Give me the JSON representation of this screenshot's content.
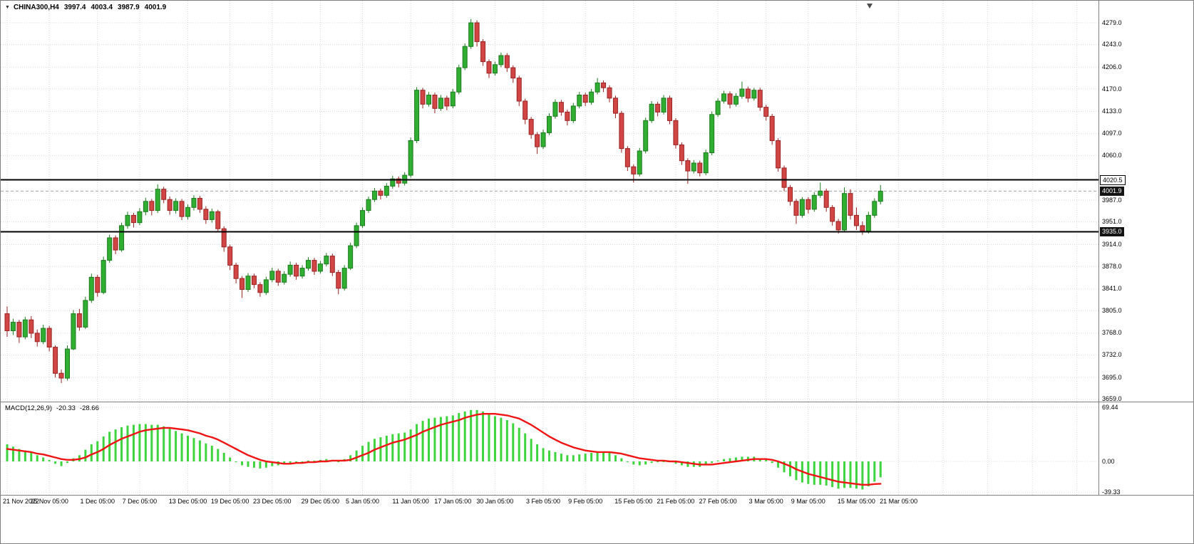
{
  "window": {
    "one_click_arrow": "▼",
    "symbol_label": "CHINA300,H4",
    "ohlc": {
      "open": "3997.4",
      "high": "4003.4",
      "low": "3987.9",
      "close": "4001.9"
    }
  },
  "colors": {
    "bull": "#2fae31",
    "bear": "#d24545",
    "macd_histogram": "#3ed43e",
    "macd_signal": "#f01414",
    "line_objects": "#000000",
    "background": "#ffffff"
  },
  "chart_data": [
    {
      "type": "candlestick",
      "title": "CHINA300,H4",
      "timeframe": "H4",
      "grid": true,
      "ylim": [
        3655.4,
        4315.3
      ],
      "price_ticks": [
        "4279.0",
        "4243.0",
        "4206.0",
        "4170.0",
        "4133.0",
        "4097.0",
        "4060.0",
        "3987.0",
        "3951.0",
        "3914.0",
        "3878.0",
        "3841.0",
        "3805.0",
        "3768.0",
        "3732.0",
        "3695.0",
        "3659.0"
      ],
      "hlines": [
        {
          "price": 4020.5,
          "label": "4020.5",
          "style": "light"
        },
        {
          "price": 3935.0,
          "label": "3935.0",
          "style": "dark"
        }
      ],
      "bid": {
        "price": 4001.9,
        "label": "4001.9"
      },
      "x_labels": [
        {
          "text": "21 Nov 2022",
          "index": 0
        },
        {
          "text": "25 Nov 05:00",
          "index": 7
        },
        {
          "text": "1 Dec 05:00",
          "index": 15
        },
        {
          "text": "7 Dec 05:00",
          "index": 22
        },
        {
          "text": "13 Dec 05:00",
          "index": 30
        },
        {
          "text": "19 Dec 05:00",
          "index": 37
        },
        {
          "text": "23 Dec 05:00",
          "index": 44
        },
        {
          "text": "29 Dec 05:00",
          "index": 52
        },
        {
          "text": "5 Jan 05:00",
          "index": 59
        },
        {
          "text": "11 Jan 05:00",
          "index": 67
        },
        {
          "text": "17 Jan 05:00",
          "index": 74
        },
        {
          "text": "30 Jan 05:00",
          "index": 81
        },
        {
          "text": "3 Feb 05:00",
          "index": 89
        },
        {
          "text": "9 Feb 05:00",
          "index": 96
        },
        {
          "text": "15 Feb 05:00",
          "index": 104
        },
        {
          "text": "21 Feb 05:00",
          "index": 111
        },
        {
          "text": "27 Feb 05:00",
          "index": 118
        },
        {
          "text": "3 Mar 05:00",
          "index": 126
        },
        {
          "text": "9 Mar 05:00",
          "index": 133
        },
        {
          "text": "15 Mar 05:00",
          "index": 141
        },
        {
          "text": "21 Mar 05:00",
          "index": 148
        }
      ],
      "candles": [
        [
          3800,
          3812,
          3762,
          3772
        ],
        [
          3772,
          3792,
          3765,
          3786
        ],
        [
          3786,
          3790,
          3752,
          3762
        ],
        [
          3762,
          3795,
          3758,
          3790
        ],
        [
          3790,
          3796,
          3760,
          3768
        ],
        [
          3768,
          3774,
          3746,
          3754
        ],
        [
          3754,
          3782,
          3750,
          3776
        ],
        [
          3776,
          3780,
          3738,
          3745
        ],
        [
          3745,
          3748,
          3695,
          3702
        ],
        [
          3702,
          3708,
          3686,
          3694
        ],
        [
          3694,
          3748,
          3690,
          3742
        ],
        [
          3742,
          3806,
          3740,
          3800
        ],
        [
          3800,
          3808,
          3772,
          3778
        ],
        [
          3778,
          3828,
          3775,
          3822
        ],
        [
          3822,
          3866,
          3818,
          3860
        ],
        [
          3860,
          3864,
          3828,
          3835
        ],
        [
          3835,
          3894,
          3832,
          3888
        ],
        [
          3888,
          3930,
          3884,
          3925
        ],
        [
          3925,
          3929,
          3898,
          3905
        ],
        [
          3905,
          3950,
          3902,
          3945
        ],
        [
          3945,
          3968,
          3940,
          3962
        ],
        [
          3962,
          3966,
          3942,
          3950
        ],
        [
          3950,
          3974,
          3946,
          3968
        ],
        [
          3968,
          3991,
          3962,
          3985
        ],
        [
          3985,
          3989,
          3962,
          3970
        ],
        [
          3970,
          4013,
          3966,
          4005
        ],
        [
          4005,
          4009,
          3982,
          3988
        ],
        [
          3988,
          3993,
          3963,
          3970
        ],
        [
          3970,
          3990,
          3965,
          3985
        ],
        [
          3985,
          3989,
          3954,
          3960
        ],
        [
          3960,
          3980,
          3955,
          3975
        ],
        [
          3975,
          3995,
          3970,
          3990
        ],
        [
          3990,
          3994,
          3966,
          3972
        ],
        [
          3972,
          3977,
          3948,
          3955
        ],
        [
          3955,
          3973,
          3950,
          3968
        ],
        [
          3968,
          3971,
          3934,
          3940
        ],
        [
          3940,
          3944,
          3902,
          3910
        ],
        [
          3910,
          3914,
          3872,
          3880
        ],
        [
          3880,
          3884,
          3850,
          3858
        ],
        [
          3858,
          3862,
          3826,
          3840
        ],
        [
          3840,
          3867,
          3836,
          3862
        ],
        [
          3862,
          3866,
          3842,
          3848
        ],
        [
          3848,
          3852,
          3828,
          3835
        ],
        [
          3835,
          3861,
          3831,
          3856
        ],
        [
          3856,
          3876,
          3852,
          3870
        ],
        [
          3870,
          3874,
          3846,
          3852
        ],
        [
          3852,
          3870,
          3848,
          3865
        ],
        [
          3865,
          3886,
          3861,
          3880
        ],
        [
          3880,
          3884,
          3856,
          3862
        ],
        [
          3862,
          3880,
          3858,
          3875
        ],
        [
          3875,
          3893,
          3871,
          3888
        ],
        [
          3888,
          3892,
          3864,
          3870
        ],
        [
          3870,
          3887,
          3866,
          3882
        ],
        [
          3882,
          3900,
          3878,
          3895
        ],
        [
          3895,
          3899,
          3862,
          3868
        ],
        [
          3868,
          3872,
          3832,
          3842
        ],
        [
          3842,
          3880,
          3838,
          3875
        ],
        [
          3875,
          3917,
          3872,
          3912
        ],
        [
          3912,
          3950,
          3908,
          3945
        ],
        [
          3945,
          3975,
          3941,
          3970
        ],
        [
          3970,
          3993,
          3966,
          3988
        ],
        [
          3988,
          4007,
          3984,
          4002
        ],
        [
          4002,
          4006,
          3988,
          3995
        ],
        [
          3995,
          4015,
          3991,
          4010
        ],
        [
          4010,
          4027,
          4006,
          4022
        ],
        [
          4022,
          4026,
          4008,
          4015
        ],
        [
          4015,
          4033,
          4011,
          4028
        ],
        [
          4028,
          4090,
          4024,
          4085
        ],
        [
          4085,
          4173,
          4081,
          4168
        ],
        [
          4168,
          4172,
          4138,
          4145
        ],
        [
          4145,
          4165,
          4141,
          4160
        ],
        [
          4160,
          4164,
          4130,
          4138
        ],
        [
          4138,
          4160,
          4134,
          4155
        ],
        [
          4155,
          4159,
          4135,
          4142
        ],
        [
          4142,
          4170,
          4138,
          4165
        ],
        [
          4165,
          4210,
          4161,
          4205
        ],
        [
          4205,
          4245,
          4201,
          4240
        ],
        [
          4240,
          4285,
          4236,
          4279
        ],
        [
          4279,
          4283,
          4240,
          4248
        ],
        [
          4248,
          4252,
          4208,
          4215
        ],
        [
          4215,
          4219,
          4188,
          4196
        ],
        [
          4196,
          4215,
          4192,
          4210
        ],
        [
          4210,
          4230,
          4206,
          4225
        ],
        [
          4225,
          4229,
          4198,
          4205
        ],
        [
          4205,
          4209,
          4180,
          4188
        ],
        [
          4188,
          4192,
          4142,
          4150
        ],
        [
          4150,
          4154,
          4112,
          4120
        ],
        [
          4120,
          4124,
          4088,
          4095
        ],
        [
          4095,
          4099,
          4063,
          4075
        ],
        [
          4075,
          4103,
          4071,
          4098
        ],
        [
          4098,
          4130,
          4094,
          4125
        ],
        [
          4125,
          4153,
          4121,
          4148
        ],
        [
          4148,
          4152,
          4126,
          4132
        ],
        [
          4132,
          4136,
          4110,
          4118
        ],
        [
          4118,
          4147,
          4114,
          4142
        ],
        [
          4142,
          4165,
          4138,
          4160
        ],
        [
          4160,
          4164,
          4142,
          4148
        ],
        [
          4148,
          4170,
          4144,
          4165
        ],
        [
          4165,
          4188,
          4161,
          4180
        ],
        [
          4180,
          4184,
          4165,
          4172
        ],
        [
          4172,
          4176,
          4148,
          4155
        ],
        [
          4155,
          4159,
          4122,
          4130
        ],
        [
          4130,
          4134,
          4065,
          4072
        ],
        [
          4072,
          4076,
          4035,
          4042
        ],
        [
          4042,
          4046,
          4016,
          4030
        ],
        [
          4030,
          4073,
          4026,
          4068
        ],
        [
          4068,
          4123,
          4064,
          4118
        ],
        [
          4118,
          4150,
          4114,
          4145
        ],
        [
          4145,
          4149,
          4125,
          4132
        ],
        [
          4132,
          4160,
          4128,
          4155
        ],
        [
          4155,
          4159,
          4112,
          4118
        ],
        [
          4118,
          4122,
          4072,
          4078
        ],
        [
          4078,
          4082,
          4045,
          4052
        ],
        [
          4052,
          4056,
          4014,
          4035
        ],
        [
          4035,
          4053,
          4031,
          4048
        ],
        [
          4048,
          4052,
          4026,
          4032
        ],
        [
          4032,
          4070,
          4028,
          4065
        ],
        [
          4065,
          4133,
          4061,
          4128
        ],
        [
          4128,
          4155,
          4124,
          4150
        ],
        [
          4150,
          4167,
          4146,
          4162
        ],
        [
          4162,
          4166,
          4138,
          4145
        ],
        [
          4145,
          4163,
          4141,
          4158
        ],
        [
          4158,
          4182,
          4154,
          4170
        ],
        [
          4170,
          4174,
          4148,
          4155
        ],
        [
          4155,
          4172,
          4151,
          4168
        ],
        [
          4168,
          4172,
          4134,
          4140
        ],
        [
          4140,
          4144,
          4118,
          4125
        ],
        [
          4125,
          4129,
          4078,
          4085
        ],
        [
          4085,
          4089,
          4034,
          4040
        ],
        [
          4040,
          4044,
          4002,
          4008
        ],
        [
          4008,
          4012,
          3978,
          3985
        ],
        [
          3985,
          3989,
          3948,
          3962
        ],
        [
          3962,
          3992,
          3958,
          3988
        ],
        [
          3988,
          3992,
          3965,
          3972
        ],
        [
          3972,
          4000,
          3968,
          3995
        ],
        [
          3995,
          4016,
          3991,
          4002
        ],
        [
          4002,
          4006,
          3968,
          3975
        ],
        [
          3975,
          3979,
          3945,
          3952
        ],
        [
          3952,
          3956,
          3932,
          3938
        ],
        [
          3938,
          4008,
          3935,
          3998
        ],
        [
          3998,
          4005,
          3955,
          3962
        ],
        [
          3962,
          3975,
          3938,
          3945
        ],
        [
          3945,
          3952,
          3930,
          3936
        ],
        [
          3936,
          3968,
          3932,
          3962
        ],
        [
          3962,
          3990,
          3958,
          3985
        ],
        [
          3985,
          4012,
          3980,
          4001.9
        ]
      ]
    },
    {
      "type": "macd",
      "name": "MACD(12,26,9)",
      "main_value": "-20.33",
      "signal_value": "-28.66",
      "ylim": [
        -42.93,
        75.84
      ],
      "ticks": [
        "69.44",
        "0.00",
        "-39.33"
      ],
      "histogram": [
        22,
        19,
        16,
        14,
        11,
        8,
        5,
        2,
        -3,
        -6,
        -2,
        4,
        8,
        15,
        22,
        26,
        32,
        38,
        41,
        44,
        46,
        47,
        48,
        48,
        47,
        47,
        45,
        42,
        39,
        36,
        33,
        30,
        27,
        23,
        20,
        16,
        11,
        5,
        0,
        -5,
        -7,
        -8,
        -9,
        -8,
        -6,
        -5,
        -4,
        -2,
        -1,
        0,
        1,
        1,
        2,
        3,
        2,
        0,
        3,
        8,
        14,
        20,
        25,
        29,
        31,
        33,
        35,
        36,
        37,
        41,
        48,
        52,
        55,
        56,
        57,
        58,
        59,
        62,
        64,
        66,
        66,
        64,
        61,
        58,
        56,
        53,
        49,
        43,
        36,
        29,
        22,
        17,
        14,
        12,
        10,
        8,
        8,
        9,
        10,
        11,
        12,
        12,
        11,
        8,
        4,
        0,
        -4,
        -5,
        -4,
        -2,
        -1,
        0,
        -1,
        -3,
        -5,
        -7,
        -7,
        -7,
        -5,
        -2,
        1,
        3,
        4,
        5,
        6,
        6,
        6,
        4,
        2,
        -2,
        -8,
        -14,
        -19,
        -24,
        -27,
        -29,
        -30,
        -30,
        -31,
        -33,
        -35,
        -34,
        -34,
        -35,
        -36,
        -32,
        -26,
        -20.33
      ],
      "signal": [
        16,
        15,
        14,
        13,
        12,
        10,
        9,
        7,
        5,
        3,
        2,
        2,
        3,
        5,
        9,
        12,
        16,
        21,
        25,
        29,
        32,
        35,
        38,
        40,
        41,
        42,
        43,
        43,
        42,
        41,
        40,
        38,
        36,
        33,
        31,
        28,
        24,
        20,
        16,
        12,
        8,
        5,
        2,
        0,
        -1,
        -2,
        -3,
        -3,
        -2,
        -2,
        -1,
        -1,
        0,
        0,
        1,
        1,
        1,
        2,
        5,
        8,
        11,
        15,
        18,
        21,
        24,
        26,
        28,
        31,
        34,
        38,
        41,
        44,
        47,
        49,
        51,
        53,
        56,
        58,
        60,
        61,
        61,
        61,
        60,
        59,
        57,
        55,
        51,
        47,
        42,
        37,
        32,
        28,
        24,
        21,
        18,
        16,
        14,
        13,
        12,
        12,
        12,
        11,
        10,
        8,
        6,
        4,
        3,
        2,
        1,
        1,
        0,
        0,
        -1,
        -2,
        -3,
        -4,
        -4,
        -4,
        -3,
        -2,
        -1,
        0,
        1,
        2,
        3,
        3,
        3,
        2,
        0,
        -3,
        -6,
        -10,
        -13,
        -16,
        -18,
        -20,
        -22,
        -24,
        -26,
        -27,
        -28,
        -29,
        -30,
        -30,
        -29,
        -28.66
      ]
    }
  ]
}
